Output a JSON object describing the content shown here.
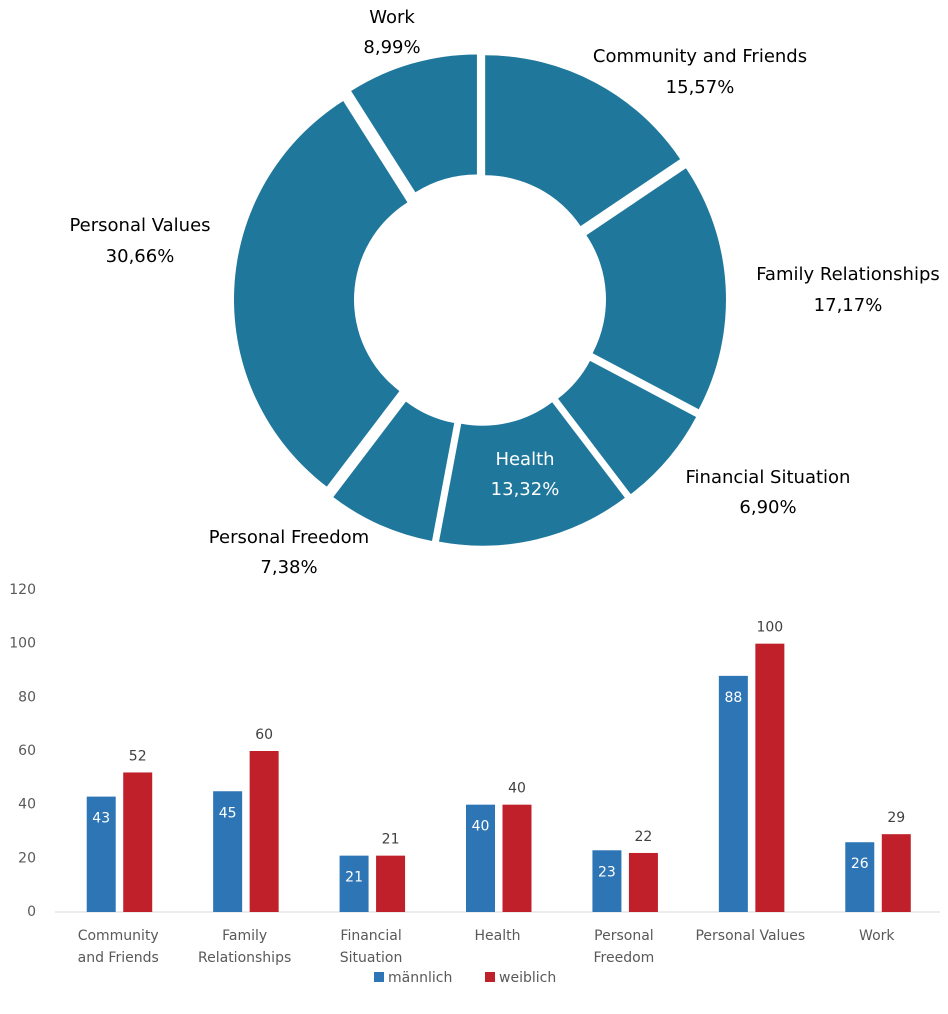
{
  "chart_data": [
    {
      "type": "donut",
      "categories": [
        "Community and Friends",
        "Family Relationships",
        "Financial Situation",
        "Health",
        "Personal Freedom",
        "Personal Values",
        "Work"
      ],
      "values": [
        15.57,
        17.17,
        6.9,
        13.32,
        7.38,
        30.66,
        8.99
      ],
      "value_labels": [
        "15,57%",
        "17,17%",
        "6,90%",
        "13,32%",
        "7,38%",
        "30,66%",
        "8,99%"
      ],
      "color": "#1f789c"
    },
    {
      "type": "bar",
      "categories": [
        "Community and Friends",
        "Family Relationships",
        "Financial Situation",
        "Health",
        "Personal Freedom",
        "Personal Values",
        "Work"
      ],
      "series": [
        {
          "name": "männlich",
          "color": "#2e75b6",
          "values": [
            43,
            45,
            21,
            40,
            23,
            88,
            26
          ]
        },
        {
          "name": "weiblich",
          "color": "#c0202a",
          "values": [
            52,
            60,
            21,
            40,
            22,
            100,
            29
          ]
        }
      ],
      "ylim": [
        0,
        120
      ],
      "yticks": [
        0,
        20,
        40,
        60,
        80,
        100,
        120
      ],
      "legend": "bottom"
    }
  ]
}
